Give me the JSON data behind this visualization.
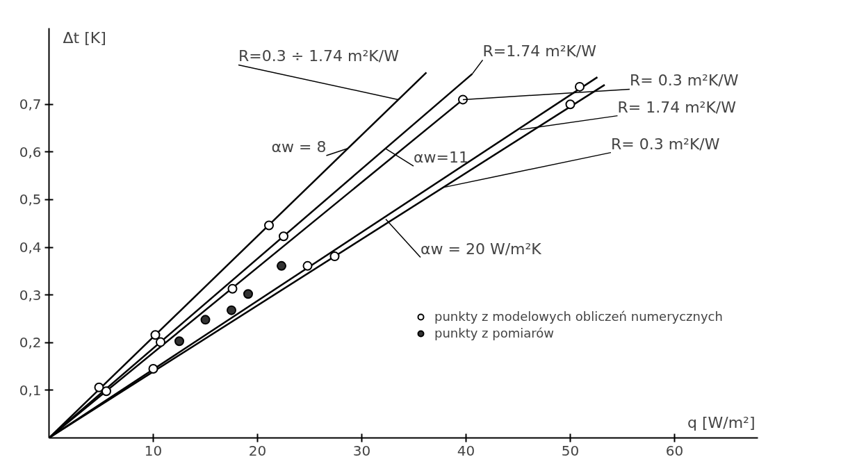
{
  "chart_data": {
    "type": "line",
    "xlabel": "q [W/m²]",
    "ylabel": "Δt [K]",
    "xlim": [
      0,
      68
    ],
    "ylim": [
      0,
      0.86
    ],
    "xticks": [
      10,
      20,
      30,
      40,
      50,
      60
    ],
    "yticks": [
      {
        "value": 0.1,
        "label": "0,1"
      },
      {
        "value": 0.2,
        "label": "0,2"
      },
      {
        "value": 0.3,
        "label": "0,3"
      },
      {
        "value": 0.4,
        "label": "0,4"
      },
      {
        "value": 0.5,
        "label": "0,5"
      },
      {
        "value": 0.6,
        "label": "0,6"
      },
      {
        "value": 0.7,
        "label": "0,7"
      }
    ],
    "grid": false,
    "legend": "right",
    "marker": "none",
    "line_style": "solid",
    "series": [
      {
        "color": "#000000",
        "x": [
          0,
          36.2
        ],
        "values": [
          0,
          0.767
        ]
      },
      {
        "color": "#000000",
        "x": [
          0,
          40.6
        ],
        "values": [
          0,
          0.764
        ]
      },
      {
        "color": "#000000",
        "x": [
          0,
          39.7
        ],
        "values": [
          0,
          0.71
        ]
      },
      {
        "color": "#000000",
        "x": [
          0,
          52.6
        ],
        "values": [
          0,
          0.757
        ]
      },
      {
        "color": "#000000",
        "x": [
          0,
          53.3
        ],
        "values": [
          0,
          0.741
        ]
      },
      {
        "type": "scatter",
        "name": "punkty z modelowych obliczeń numerycznych",
        "marker": "circle",
        "color": "#ffffff",
        "x": [
          4.8,
          10.2,
          21.1,
          5.5,
          10.7,
          17.6,
          22.5,
          39.7,
          10,
          24.8,
          27.4,
          50,
          50.9
        ],
        "values": [
          0.106,
          0.216,
          0.446,
          0.098,
          0.201,
          0.313,
          0.423,
          0.71,
          0.145,
          0.361,
          0.381,
          0.7,
          0.737
        ]
      },
      {
        "type": "scatter",
        "name": "punkty z pomiarów",
        "marker": "circle",
        "color": "#333333",
        "x": [
          12.5,
          15.0,
          17.5,
          19.1,
          22.3
        ],
        "values": [
          0.203,
          0.248,
          0.268,
          0.302,
          0.361
        ]
      }
    ],
    "annotations": [
      {
        "text": "R=0.3 ÷ 1.74 m²K/W",
        "x": 33.5,
        "y": 0.71
      },
      {
        "text": "αw = 8",
        "x": 28.6,
        "y": 0.607
      },
      {
        "text": "R=1.74 m²K/W",
        "x": 40.6,
        "y": 0.764
      },
      {
        "text": "αw=11",
        "x": 32.3,
        "y": 0.607
      },
      {
        "text": "R= 0.3 m²K/W",
        "x": 39.7,
        "y": 0.71
      },
      {
        "text": "R= 1.74 m²K/W",
        "x": 45.2,
        "y": 0.647
      },
      {
        "text": "R= 0.3 m²K/W",
        "x": 37.9,
        "y": 0.526
      },
      {
        "text": "αw = 20 W/m²K",
        "x": 32.3,
        "y": 0.459
      }
    ]
  }
}
